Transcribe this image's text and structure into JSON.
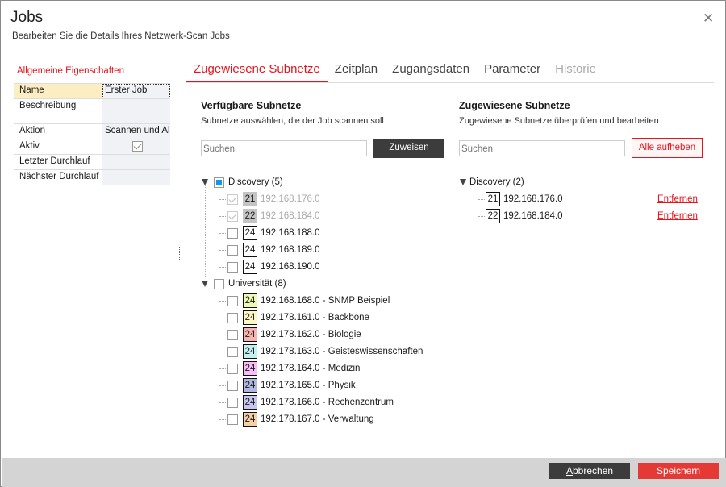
{
  "window": {
    "title": "Jobs",
    "subtitle": "Bearbeiten Sie die Details Ihres Netzwerk-Scan Jobs",
    "close_icon": "close-icon"
  },
  "properties": {
    "heading": "Allgemeine Eigenschaften",
    "rows": [
      {
        "key": "Name",
        "value": "Erster Job"
      },
      {
        "key": "Beschreibung",
        "value": ""
      },
      {
        "key": "Aktion",
        "value": "Scannen und Al"
      },
      {
        "key": "Aktiv",
        "checked": true
      },
      {
        "key": "Letzter Durchlauf",
        "value": ""
      },
      {
        "key": "Nächster Durchlauf",
        "value": ""
      }
    ]
  },
  "tabs": [
    {
      "label": "Zugewiesene Subnetze",
      "active": true
    },
    {
      "label": "Zeitplan"
    },
    {
      "label": "Zugangsdaten"
    },
    {
      "label": "Parameter"
    },
    {
      "label": "Historie",
      "disabled": true
    }
  ],
  "available": {
    "heading": "Verfügbare Subnetze",
    "subheading": "Subnetze auswählen, die der Job scannen soll",
    "search_placeholder": "Suchen",
    "assign_label": "Zuweisen",
    "groups": [
      {
        "label": "Discovery (5)",
        "state": "partial",
        "items": [
          {
            "mask": "21",
            "label": "192.168.176.0",
            "disabled": true,
            "checked": true
          },
          {
            "mask": "22",
            "label": "192.168.184.0",
            "disabled": true,
            "checked": true
          },
          {
            "mask": "24",
            "label": "192.168.188.0"
          },
          {
            "mask": "24",
            "label": "192.168.189.0"
          },
          {
            "mask": "24",
            "label": "192.168.190.0"
          }
        ]
      },
      {
        "label": "Universität (8)",
        "state": "unchecked",
        "items": [
          {
            "mask": "24",
            "label": "192.168.168.0 - SNMP Beispiel",
            "color": "#eef8b4"
          },
          {
            "mask": "24",
            "label": "192.178.161.0 - Backbone",
            "color": "#fff8c4"
          },
          {
            "mask": "24",
            "label": "192.178.162.0 - Biologie",
            "color": "#f8b4b0"
          },
          {
            "mask": "24",
            "label": "192.178.163.0 - Geisteswissenschaften",
            "color": "#c4f0f0"
          },
          {
            "mask": "24",
            "label": "192.178.164.0 - Medizin",
            "color": "#f8bcf8"
          },
          {
            "mask": "24",
            "label": "192.178.165.0 - Physik",
            "color": "#b0b8e0"
          },
          {
            "mask": "24",
            "label": "192.178.166.0 - Rechenzentrum",
            "color": "#c8c4f0"
          },
          {
            "mask": "24",
            "label": "192.178.167.0 - Verwaltung",
            "color": "#f8d0a8"
          }
        ]
      }
    ]
  },
  "assigned": {
    "heading": "Zugewiesene Subnetze",
    "subheading": "Zugewiesene Subnetze überprüfen und bearbeiten",
    "search_placeholder": "Suchen",
    "clear_label": "Alle aufheben",
    "remove_label": "Entfernen",
    "groups": [
      {
        "label": "Discovery (2)",
        "items": [
          {
            "mask": "21",
            "label": "192.168.176.0"
          },
          {
            "mask": "22",
            "label": "192.168.184.0"
          }
        ]
      }
    ]
  },
  "footer": {
    "cancel_label": "Abbrechen",
    "save_label": "Speichern"
  },
  "colors": {
    "accent": "#e8141c",
    "save": "#e53935",
    "dark_button": "#3c3c3c"
  }
}
